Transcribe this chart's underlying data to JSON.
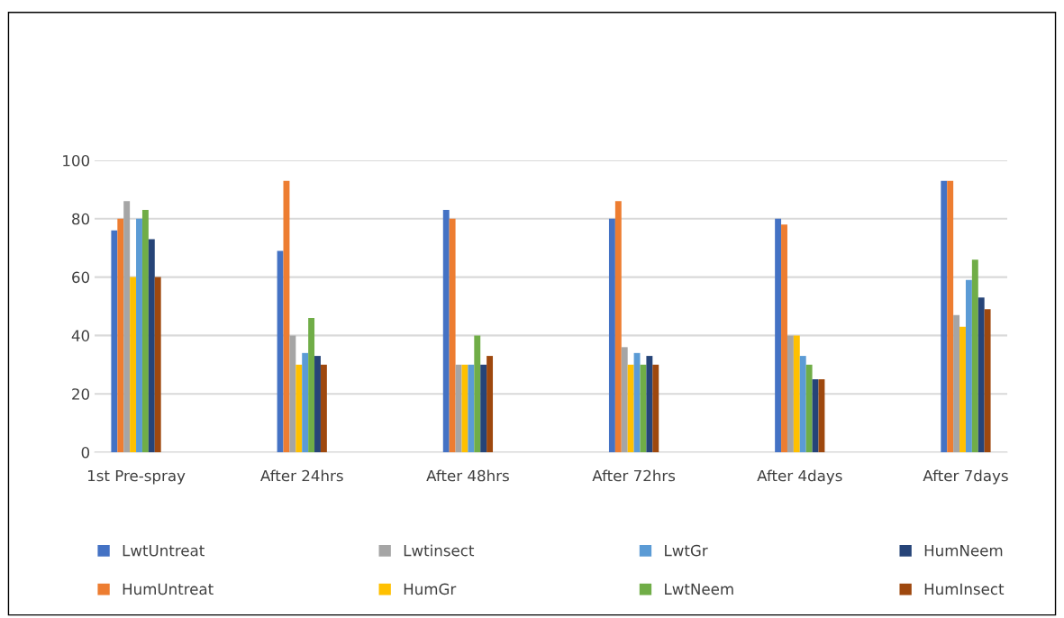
{
  "chart_data": {
    "type": "bar",
    "categories": [
      "1st Pre-spray",
      null,
      "After 24hrs",
      null,
      "After 48hrs",
      null,
      "After 72hrs",
      null,
      "After 4days",
      null,
      "After 7days"
    ],
    "series": [
      {
        "name": "LwtUntreat",
        "color": "#4472c4",
        "values": [
          76,
          0,
          69,
          0,
          83,
          0,
          80,
          0,
          80,
          0,
          93
        ]
      },
      {
        "name": "HumUntreat",
        "color": "#ed7d31",
        "values": [
          80,
          0,
          93,
          0,
          80,
          0,
          86,
          0,
          78,
          0,
          93
        ]
      },
      {
        "name": "Lwtinsect",
        "color": "#a5a5a5",
        "values": [
          86,
          0,
          40,
          0,
          30,
          0,
          36,
          0,
          40,
          0,
          47
        ]
      },
      {
        "name": "HumGr",
        "color": "#ffc000",
        "values": [
          60,
          0,
          30,
          0,
          30,
          0,
          30,
          0,
          40,
          0,
          43
        ]
      },
      {
        "name": "LwtGr",
        "color": "#5b9bd5",
        "values": [
          80,
          0,
          34,
          0,
          30,
          0,
          34,
          0,
          33,
          0,
          59
        ]
      },
      {
        "name": "LwtNeem",
        "color": "#70ad47",
        "values": [
          83,
          0,
          46,
          0,
          40,
          0,
          30,
          0,
          30,
          0,
          66
        ]
      },
      {
        "name": "HumNeem",
        "color": "#264478",
        "values": [
          73,
          0,
          33,
          0,
          30,
          0,
          33,
          0,
          25,
          0,
          53
        ]
      },
      {
        "name": "HumInsect",
        "color": "#9e480e",
        "values": [
          60,
          0,
          30,
          0,
          33,
          0,
          30,
          0,
          25,
          0,
          49
        ]
      }
    ],
    "ylim": [
      0,
      100
    ],
    "yticks": [
      0,
      20,
      40,
      60,
      80,
      100
    ],
    "grid": "y",
    "legend": "bottom"
  }
}
